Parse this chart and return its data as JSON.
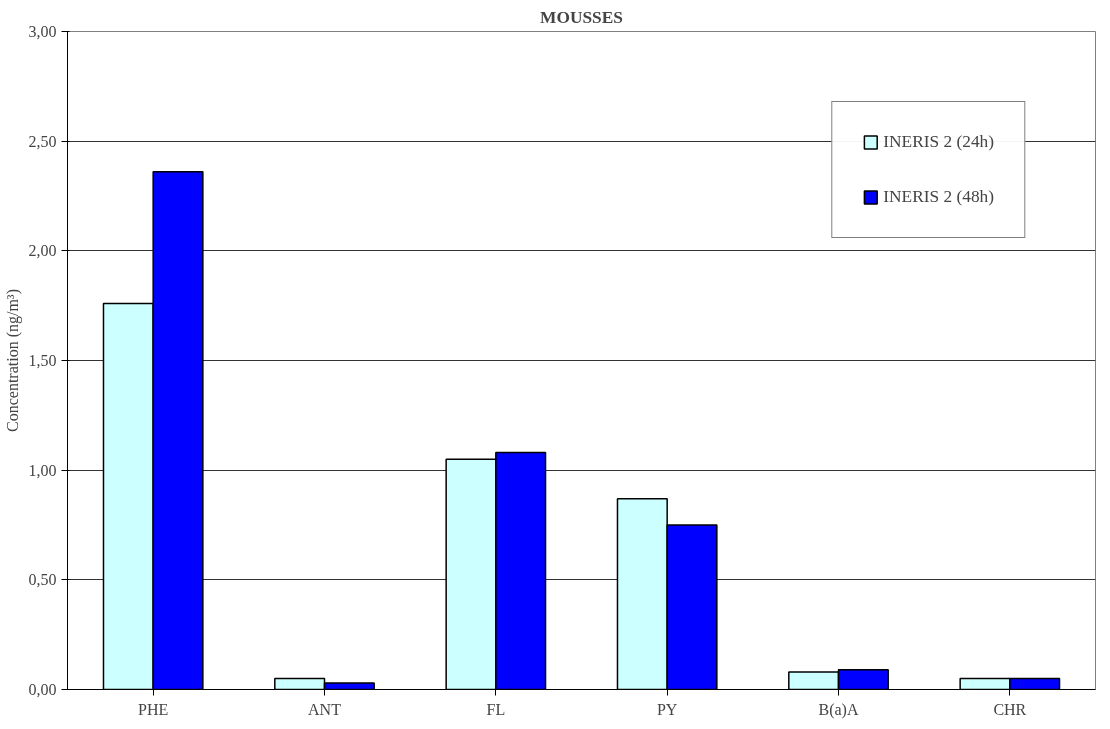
{
  "chart_data": {
    "type": "bar",
    "title": "MOUSSES",
    "ylabel": "Concentration (ng/m³)",
    "categories": [
      "PHE",
      "ANT",
      "FL",
      "PY",
      "B(a)A",
      "CHR"
    ],
    "series": [
      {
        "name": "INERIS 2 (24h)",
        "color": "#ccffff",
        "values": [
          1.76,
          0.05,
          1.05,
          0.87,
          0.08,
          0.05
        ]
      },
      {
        "name": "INERIS 2 (48h)",
        "color": "#0000ff",
        "values": [
          2.36,
          0.03,
          1.08,
          0.75,
          0.09,
          0.05
        ]
      }
    ],
    "ylim": [
      0,
      3
    ],
    "yticks": [
      {
        "value": 0,
        "label": "0,00"
      },
      {
        "value": 0.5,
        "label": "0,50"
      },
      {
        "value": 1,
        "label": "1,00"
      },
      {
        "value": 1.5,
        "label": "1,50"
      },
      {
        "value": 2,
        "label": "2,00"
      },
      {
        "value": 2.5,
        "label": "2,50"
      },
      {
        "value": 3,
        "label": "3,00"
      }
    ],
    "grid": "y",
    "legend": "top right"
  }
}
